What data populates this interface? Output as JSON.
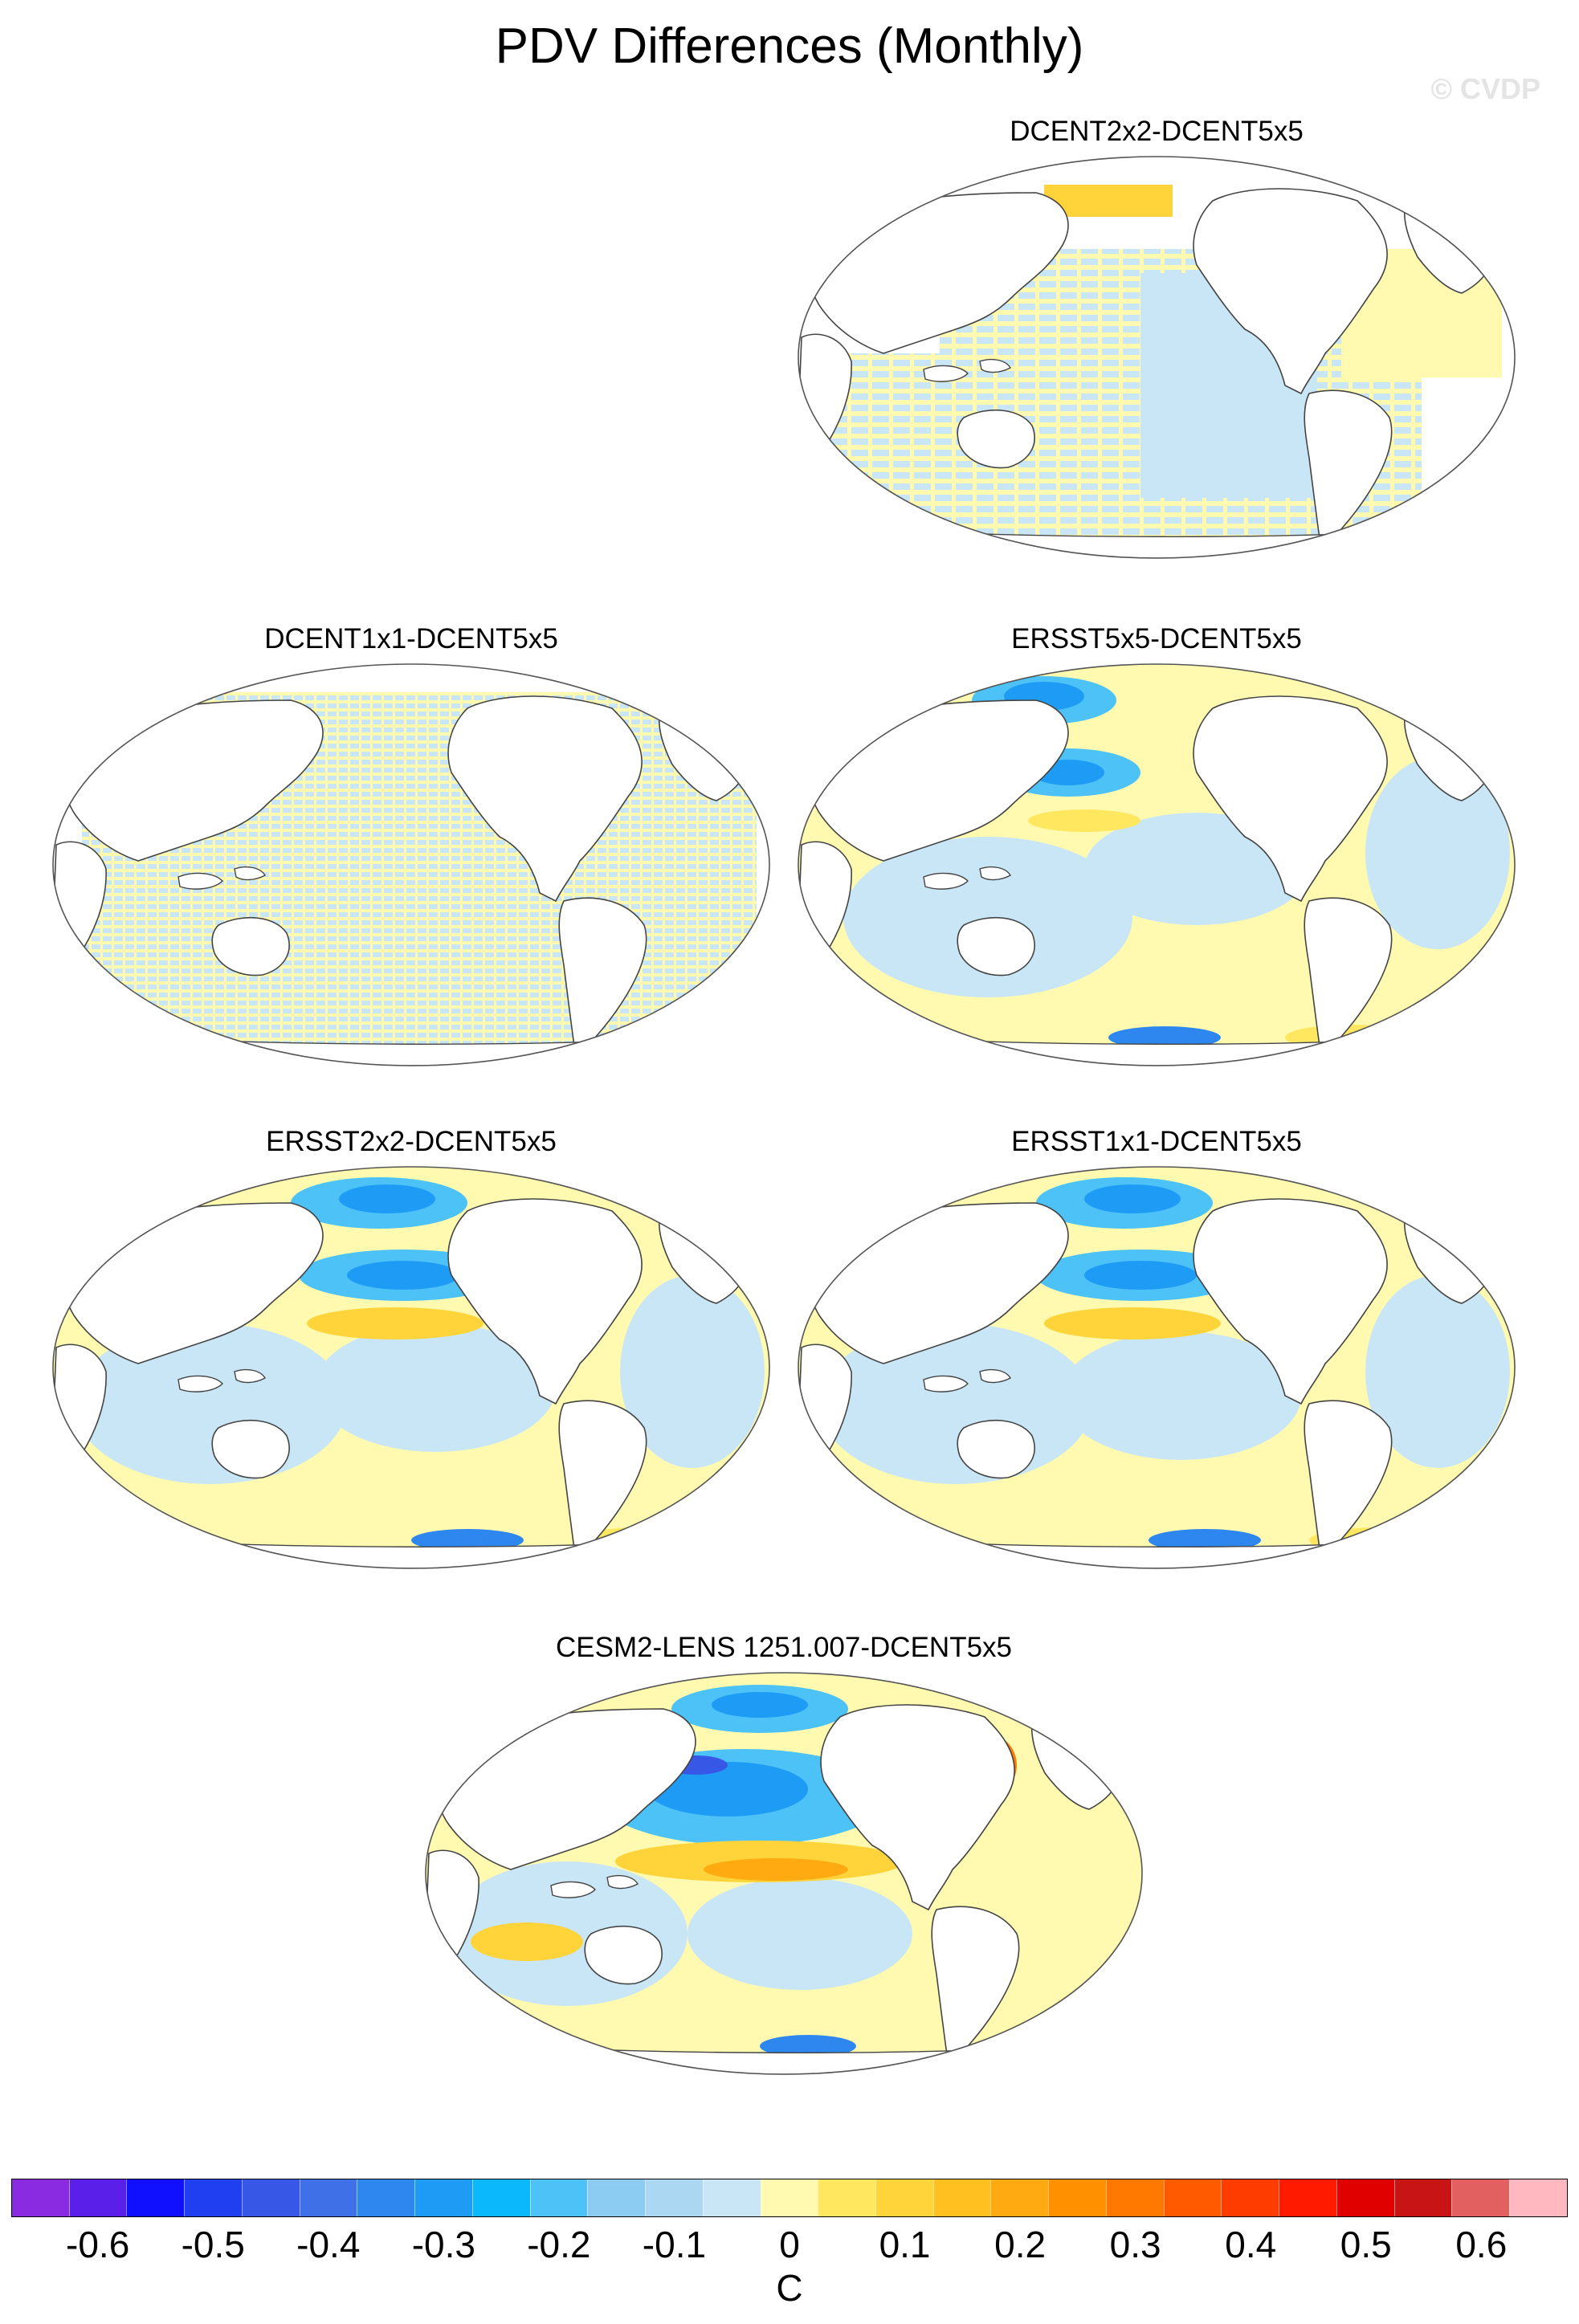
{
  "title": "PDV Differences (Monthly)",
  "watermark": "© CVDP",
  "panels": [
    {
      "id": "p1",
      "title": "DCENT2x2-DCENT5x5",
      "pattern": "stripe-light"
    },
    {
      "id": "p2",
      "title": "DCENT1x1-DCENT5x5",
      "pattern": "stripe-fine"
    },
    {
      "id": "p3",
      "title": "ERSST5x5-DCENT5x5",
      "pattern": "smooth-weak"
    },
    {
      "id": "p4",
      "title": "ERSST2x2-DCENT5x5",
      "pattern": "smooth-mid"
    },
    {
      "id": "p5",
      "title": "ERSST1x1-DCENT5x5",
      "pattern": "smooth-mid"
    },
    {
      "id": "p6",
      "title": "CESM2-LENS 1251.007-DCENT5x5",
      "pattern": "smooth-strong"
    }
  ],
  "colorbar": {
    "units": "C",
    "colors": [
      "#8a2be2",
      "#5a1fe8",
      "#1010ff",
      "#1f3ff0",
      "#3758e6",
      "#3f70e8",
      "#2e87ee",
      "#1e9bf5",
      "#0bb8fb",
      "#4dc2f7",
      "#8cccf2",
      "#acd7f2",
      "#c8e6f5",
      "#fffab0",
      "#ffe860",
      "#ffd43a",
      "#ffc020",
      "#ffaa10",
      "#ff9000",
      "#ff7800",
      "#ff5a00",
      "#ff3c00",
      "#ff1a00",
      "#e00000",
      "#c81414",
      "#e26060",
      "#ffb8c0"
    ],
    "tick_labels": [
      "-0.6",
      "-0.5",
      "-0.4",
      "-0.3",
      "-0.2",
      "-0.1",
      "0",
      "0.1",
      "0.2",
      "0.3",
      "0.4",
      "0.5",
      "0.6"
    ]
  }
}
